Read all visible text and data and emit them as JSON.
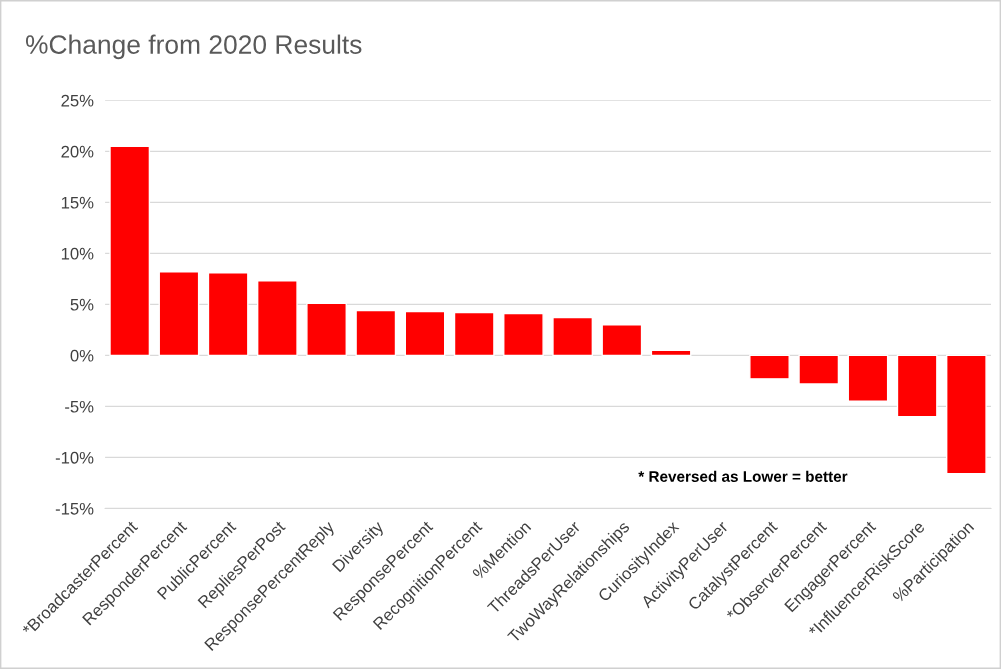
{
  "chart_data": {
    "type": "bar",
    "title": "%Change from 2020 Results",
    "categories": [
      "*BroadcasterPercent",
      "ResponderPercent",
      "PublicPercent",
      "RepliesPerPost",
      "ResponsePercentReply",
      "Diversity",
      "ResponsePercent",
      "RecognitionPercent",
      "%Mention",
      "ThreadsPerUser",
      "TwoWayRelationships",
      "CuriosityIndex",
      "ActivityPerUser",
      "CatalystPercent",
      "*ObserverPercent",
      "EngagerPercent",
      "*InfluencerRiskScore",
      "%Participation"
    ],
    "values": [
      20.5,
      8.2,
      8.1,
      7.3,
      5.1,
      4.4,
      4.3,
      4.2,
      4.1,
      3.7,
      3.0,
      0.5,
      null,
      -2.3,
      -2.8,
      -4.5,
      -6.0,
      -11.6
    ],
    "color": "#ff0000",
    "ylim": [
      -15,
      25
    ],
    "yticks": [
      {
        "value": -15,
        "label": "-15%"
      },
      {
        "value": -10,
        "label": "-10%"
      },
      {
        "value": -5,
        "label": "-5%"
      },
      {
        "value": 0,
        "label": "0%"
      },
      {
        "value": 5,
        "label": "5%"
      },
      {
        "value": 10,
        "label": "10%"
      },
      {
        "value": 15,
        "label": "15%"
      },
      {
        "value": 20,
        "label": "20%"
      },
      {
        "value": 25,
        "label": "25%"
      }
    ],
    "grid": "y",
    "annotations": [
      "* Reversed as Lower = better"
    ]
  }
}
